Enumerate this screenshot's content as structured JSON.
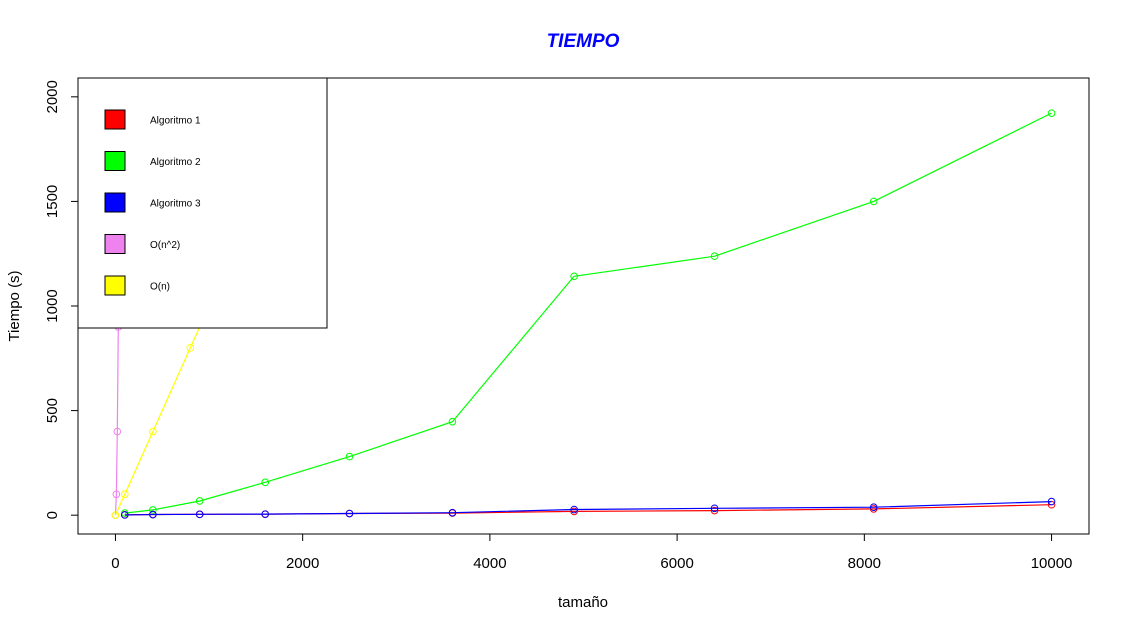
{
  "chart_data": {
    "type": "line",
    "title": "TIEMPO",
    "title_color": "#0000ff",
    "xlabel": "tamaño",
    "ylabel": "Tiempo (s)",
    "xlim": [
      -400,
      10400
    ],
    "ylim": [
      -90,
      2090
    ],
    "x_ticks": [
      0,
      2000,
      4000,
      6000,
      8000,
      10000
    ],
    "x_tick_labels": [
      "0",
      "2000",
      "4000",
      "6000",
      "8000",
      "10000"
    ],
    "y_ticks": [
      0,
      500,
      1000,
      1500,
      2000
    ],
    "y_tick_labels": [
      "0",
      "500",
      "1000",
      "1500",
      "2000"
    ],
    "grid": false,
    "legend_position": "top-left",
    "series": [
      {
        "name": "Algoritmo 1",
        "color": "#ff0000",
        "x": [
          100,
          400,
          900,
          1600,
          2500,
          3600,
          4900,
          6400,
          8100,
          10000
        ],
        "y": [
          2,
          3,
          4,
          5,
          8,
          10,
          18,
          22,
          30,
          50
        ]
      },
      {
        "name": "Algoritmo 2",
        "color": "#00ff00",
        "x": [
          100,
          400,
          900,
          1600,
          2500,
          3600,
          4900,
          6400,
          8100,
          10000
        ],
        "y": [
          10,
          25,
          68,
          157,
          280,
          447,
          1142,
          1238,
          1500,
          1922
        ]
      },
      {
        "name": "Algoritmo 3",
        "color": "#0000ff",
        "x": [
          100,
          400,
          900,
          1600,
          2500,
          3600,
          4900,
          6400,
          8100,
          10000
        ],
        "y": [
          1,
          3,
          4,
          5,
          8,
          12,
          27,
          33,
          38,
          65
        ]
      },
      {
        "name": "O(n^2)",
        "color": "#ee82ee",
        "x": [
          0,
          10,
          20,
          30
        ],
        "y": [
          0,
          100,
          400,
          900
        ]
      },
      {
        "name": "O(n)",
        "color": "#ffff00",
        "x": [
          0,
          100,
          400,
          800,
          1200
        ],
        "y": [
          0,
          100,
          400,
          800,
          1200
        ]
      }
    ]
  }
}
